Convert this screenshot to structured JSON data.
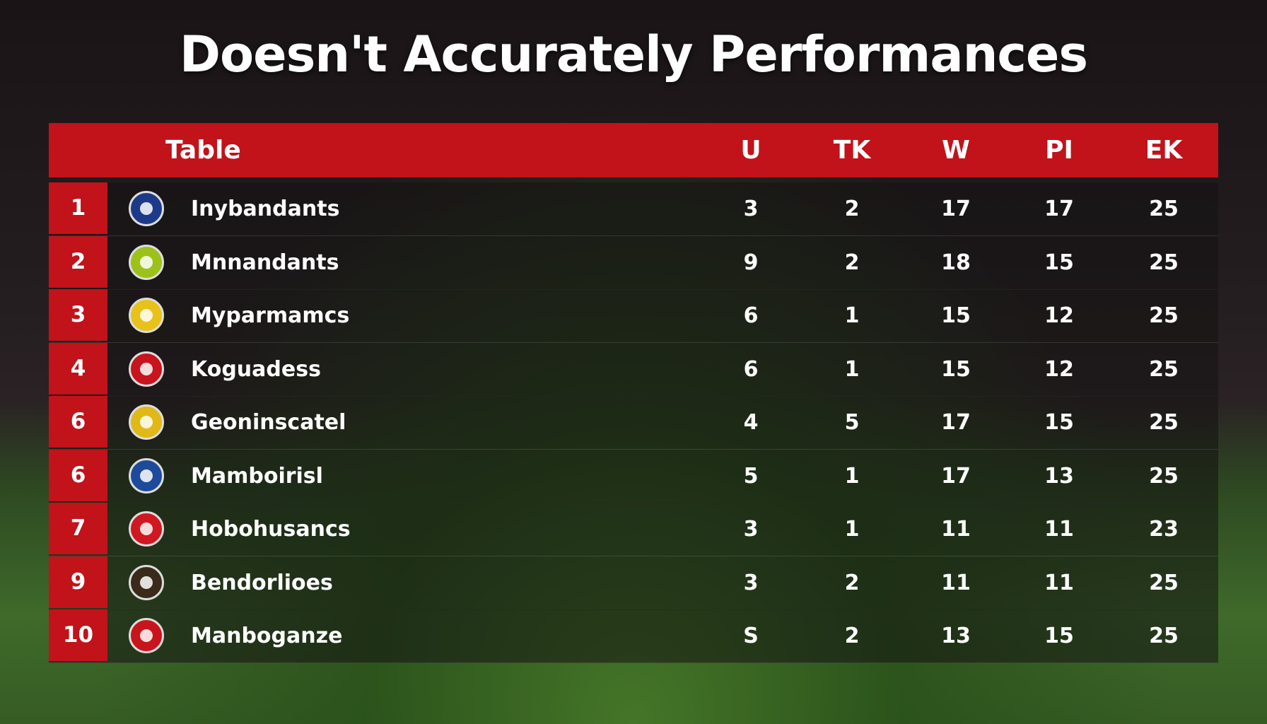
{
  "title": "Doesn't Accurately Performances",
  "table": {
    "header": [
      "Table",
      "U",
      "TK",
      "W",
      "PI",
      "EK"
    ],
    "rows": [
      {
        "rank": "1",
        "team": "Inybandants",
        "values": [
          3,
          2,
          17,
          17,
          25
        ]
      },
      {
        "rank": "2",
        "team": "Mnnandants",
        "values": [
          9,
          2,
          18,
          15,
          25
        ]
      },
      {
        "rank": "3",
        "team": "Myparmamcs",
        "values": [
          6,
          1,
          15,
          12,
          25
        ]
      },
      {
        "rank": "4",
        "team": "Koguadess",
        "values": [
          6,
          1,
          15,
          12,
          25
        ]
      },
      {
        "rank": "6",
        "team": "Geoninscatel",
        "values": [
          4,
          5,
          17,
          15,
          25
        ]
      },
      {
        "rank": "6",
        "team": "Mamboirisl",
        "values": [
          5,
          1,
          17,
          13,
          25
        ]
      },
      {
        "rank": "7",
        "team": "Hobohusancs",
        "values": [
          3,
          1,
          11,
          11,
          23
        ]
      },
      {
        "rank": "9",
        "team": "Bendorlioes",
        "values": [
          3,
          2,
          11,
          11,
          25
        ]
      },
      {
        "rank": "10",
        "team": "Manboganze",
        "values": [
          "S",
          2,
          13,
          15,
          25
        ]
      }
    ]
  }
}
